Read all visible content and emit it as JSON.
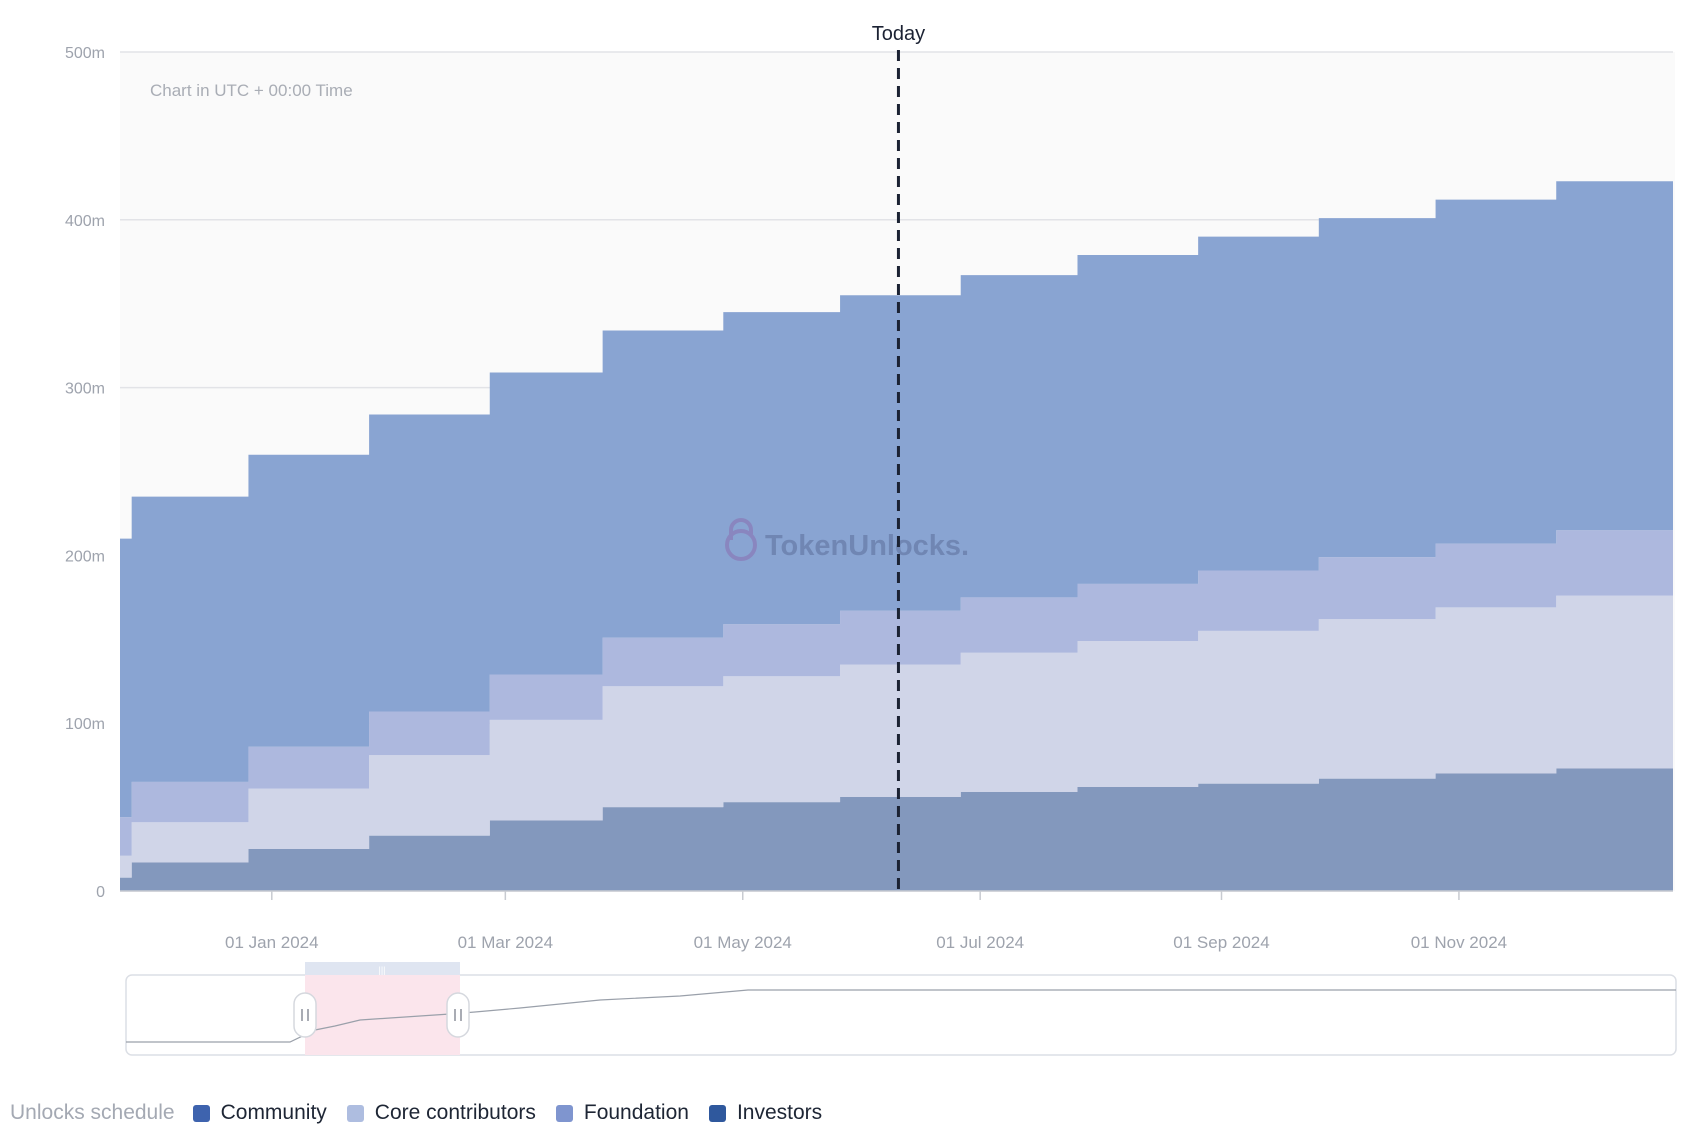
{
  "chart_data": {
    "type": "area",
    "subtitle": "Chart in UTC + 00:00 Time",
    "today_label": "Today",
    "watermark": "TokenUnlocks.",
    "ylim": [
      0,
      500
    ],
    "y_ticks": [
      {
        "value": 0,
        "label": "0"
      },
      {
        "value": 100,
        "label": "100m"
      },
      {
        "value": 200,
        "label": "200m"
      },
      {
        "value": 300,
        "label": "300m"
      },
      {
        "value": 400,
        "label": "400m"
      },
      {
        "value": 500,
        "label": "500m"
      }
    ],
    "x_range": [
      "2023-11-23",
      "2024-12-26"
    ],
    "x_ticks": [
      {
        "date": "2024-01-01",
        "label": "01 Jan 2024"
      },
      {
        "date": "2024-03-01",
        "label": "01 Mar 2024"
      },
      {
        "date": "2024-05-01",
        "label": "01 May 2024"
      },
      {
        "date": "2024-07-01",
        "label": "01 Jul 2024"
      },
      {
        "date": "2024-09-01",
        "label": "01 Sep 2024"
      },
      {
        "date": "2024-11-01",
        "label": "01 Nov 2024"
      }
    ],
    "today_date": "2024-06-10",
    "grid": true,
    "stacked": true,
    "step": true,
    "dates": [
      "2023-11-23",
      "2023-11-26",
      "2023-12-26",
      "2024-01-26",
      "2024-02-26",
      "2024-03-26",
      "2024-04-26",
      "2024-05-26",
      "2024-06-26",
      "2024-07-26",
      "2024-08-26",
      "2024-09-26",
      "2024-10-26",
      "2024-11-26",
      "2024-12-26"
    ],
    "series": [
      {
        "name": "Investors",
        "color": "#8398bd",
        "values": [
          8,
          17,
          25,
          33,
          42,
          50,
          53,
          56,
          59,
          62,
          64,
          67,
          70,
          73,
          73
        ]
      },
      {
        "name": "Core contributors",
        "color": "#d0d5e8",
        "values": [
          13,
          24,
          36,
          48,
          60,
          72,
          75,
          79,
          83,
          87,
          91,
          95,
          99,
          103,
          103
        ]
      },
      {
        "name": "Foundation",
        "color": "#adb8de",
        "values": [
          23,
          24,
          25,
          26,
          27,
          29,
          31,
          32,
          33,
          34,
          36,
          37,
          38,
          39,
          39
        ]
      },
      {
        "name": "Community",
        "color": "#89a4d2",
        "values": [
          166,
          170,
          174,
          177,
          180,
          183,
          186,
          188,
          192,
          196,
          199,
          202,
          205,
          208,
          208
        ]
      }
    ]
  },
  "legend": {
    "title": "Unlocks schedule",
    "items": [
      {
        "label": "Community",
        "color": "#3e63ae"
      },
      {
        "label": "Core contributors",
        "color": "#aebde0"
      },
      {
        "label": "Foundation",
        "color": "#7f95cf"
      },
      {
        "label": "Investors",
        "color": "#2f589d"
      }
    ]
  },
  "navigator": {
    "selection_start": "2023-11-23",
    "selection_end": "2024-12-26"
  }
}
